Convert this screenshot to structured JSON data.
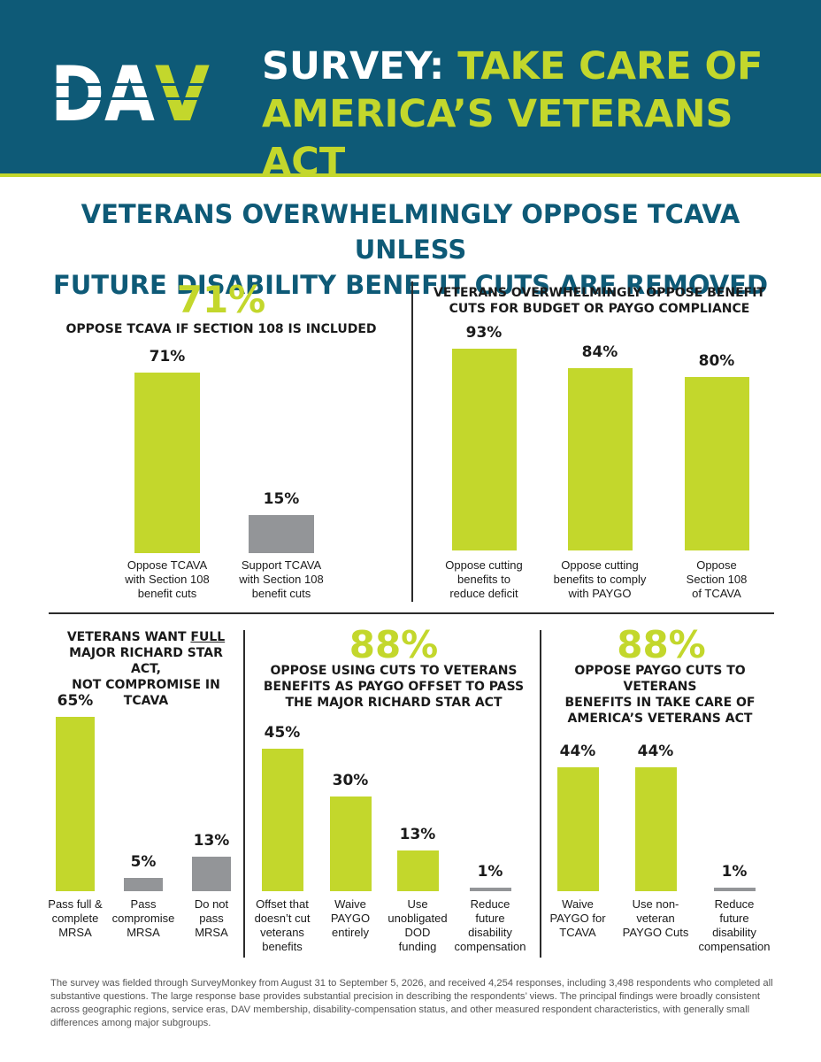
{
  "header": {
    "title_part1": "SURVEY:",
    "title_part2": "TAKE CARE OF",
    "title_line2": "AMERICA’S VETERANS ACT",
    "logo_text": "DAV"
  },
  "headline": {
    "line1": "VETERANS OVERWHELMINGLY OPPOSE TCAVA UNLESS",
    "line2": "FUTURE DISABILITY BENEFIT CUTS ARE REMOVED"
  },
  "colors": {
    "accent": "#c3d72c",
    "brand": "#0e5a77",
    "neutral_bar": "#939598"
  },
  "chart_data": [
    {
      "id": "c1",
      "type": "bar",
      "big_stat": "71%",
      "title": "OPPOSE TCAVA IF SECTION 108 IS INCLUDED",
      "categories": [
        "Oppose TCAVA\nwith Section 108\nbenefit cuts",
        "Support TCAVA\nwith Section 108\nbenefit cuts"
      ],
      "values": [
        71,
        15
      ],
      "labels": [
        "71%",
        "15%"
      ],
      "colors": [
        "#c3d72c",
        "#939598"
      ],
      "ylim": [
        0,
        100
      ]
    },
    {
      "id": "c2",
      "type": "bar",
      "big_stat": "",
      "title": "VETERANS OVERWHELMINGLY OPPOSE BENEFIT\nCUTS FOR BUDGET OR PAYGO COMPLIANCE",
      "categories": [
        "Oppose cutting\nbenefits to\nreduce deficit",
        "Oppose cutting\nbenefits to comply\nwith PAYGO",
        "Oppose\nSection 108\nof TCAVA"
      ],
      "values": [
        93,
        84,
        80
      ],
      "labels": [
        "93%",
        "84%",
        "80%"
      ],
      "colors": [
        "#c3d72c",
        "#c3d72c",
        "#c3d72c"
      ],
      "ylim": [
        0,
        100
      ]
    },
    {
      "id": "c3",
      "type": "bar",
      "big_stat": "",
      "title_parts": [
        "VETERANS WANT ",
        "FULL",
        "\nMAJOR RICHARD STAR ACT,\nNOT COMPROMISE IN TCAVA"
      ],
      "categories": [
        "Pass full &\ncomplete\nMRSA",
        "Pass\ncompromise\nMRSA",
        "Do not\npass\nMRSA"
      ],
      "values": [
        65,
        5,
        13
      ],
      "labels": [
        "65%",
        "5%",
        "13%"
      ],
      "colors": [
        "#c3d72c",
        "#939598",
        "#939598"
      ],
      "ylim": [
        0,
        100
      ]
    },
    {
      "id": "c4",
      "type": "bar",
      "big_stat": "88%",
      "title": "OPPOSE USING CUTS TO VETERANS\nBENEFITS AS PAYGO OFFSET TO PASS\nTHE MAJOR RICHARD STAR ACT",
      "categories": [
        "Offset that\ndoesn’t cut\nveterans\nbenefits",
        "Waive\nPAYGO\nentirely",
        "Use\nunobligated\nDOD\nfunding",
        "Reduce\nfuture\ndisability\ncompensation"
      ],
      "values": [
        45,
        30,
        13,
        1
      ],
      "labels": [
        "45%",
        "30%",
        "13%",
        "1%"
      ],
      "colors": [
        "#c3d72c",
        "#c3d72c",
        "#c3d72c",
        "#939598"
      ],
      "ylim": [
        0,
        100
      ]
    },
    {
      "id": "c5",
      "type": "bar",
      "big_stat": "88%",
      "title": "OPPOSE PAYGO CUTS TO VETERANS\nBENEFITS IN TAKE CARE OF\nAMERICA’S VETERANS ACT",
      "categories": [
        "Waive\nPAYGO for\nTCAVA",
        "Use non-\nveteran\nPAYGO Cuts",
        "Reduce\nfuture\ndisability\ncompensation"
      ],
      "values": [
        44,
        44,
        1
      ],
      "labels": [
        "44%",
        "44%",
        "1%"
      ],
      "colors": [
        "#c3d72c",
        "#c3d72c",
        "#939598"
      ],
      "ylim": [
        0,
        100
      ]
    }
  ],
  "footnote": "The survey was fielded through SurveyMonkey from August 31 to September 5, 2026, and received 4,254 responses, including 3,498 respondents who completed all substantive questions. The large response base provides substantial precision in describing the respondents’ views. The principal findings were broadly consistent across geographic regions, service eras, DAV membership, disability-compensation status, and other measured respondent characteristics, with generally small differences among major subgroups."
}
